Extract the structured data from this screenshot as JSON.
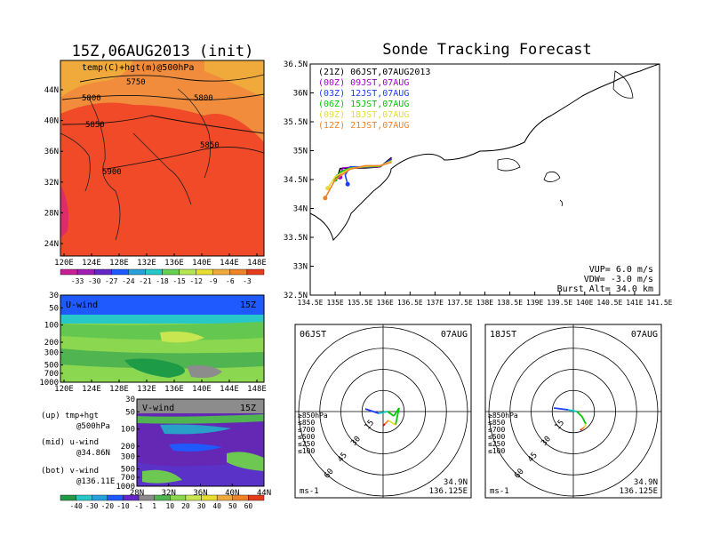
{
  "left": {
    "init_title": "15Z,06AUG2013 (init)",
    "map": {
      "label": "temp(C)+hgt(m)@500hPa",
      "lon_ticks": [
        "120E",
        "124E",
        "128E",
        "132E",
        "136E",
        "140E",
        "144E",
        "148E"
      ],
      "lat_ticks": [
        "44N",
        "40N",
        "36N",
        "32N",
        "28N",
        "24N"
      ],
      "contour_labels": [
        "5750",
        "5800",
        "5800",
        "5850",
        "5850",
        "5900"
      ]
    },
    "temp_colorbar": [
      "-33",
      "-30",
      "-27",
      "-24",
      "-21",
      "-18",
      "-15",
      "-12",
      "-9",
      "-6",
      "-3"
    ],
    "uwind": {
      "label": "U-wind",
      "time": "15Z",
      "p_ticks": [
        "30",
        "50",
        "100",
        "200",
        "300",
        "500",
        "700",
        "1000"
      ],
      "lon_ticks": [
        "120E",
        "124E",
        "128E",
        "132E",
        "136E",
        "140E",
        "144E",
        "148E"
      ]
    },
    "vwind": {
      "label": "V-wind",
      "time": "15Z",
      "p_ticks": [
        "30",
        "50",
        "100",
        "200",
        "300",
        "500",
        "700",
        "1000"
      ],
      "lat_ticks": [
        "28N",
        "32N",
        "36N",
        "40N",
        "44N"
      ]
    },
    "legend_text": {
      "up_1": "(up) tmp+hgt",
      "up_2": "@500hPa",
      "mid_1": "(mid) u-wind",
      "mid_2": "@34.86N",
      "bot_1": "(bot) v-wind",
      "bot_2": "@136.11E"
    },
    "wind_colorbar": [
      "-40",
      "-30",
      "-20",
      "-10",
      "-1",
      "1",
      "10",
      "20",
      "30",
      "40",
      "50",
      "60"
    ]
  },
  "right": {
    "title": "Sonde Tracking Forecast",
    "track_map": {
      "lon_ticks": [
        "134.5E",
        "135E",
        "135.5E",
        "136E",
        "136.5E",
        "137E",
        "137.5E",
        "138E",
        "138.5E",
        "139E",
        "139.5E",
        "140E",
        "140.5E",
        "141E",
        "141.5E"
      ],
      "lat_ticks": [
        "36.5N",
        "36N",
        "35.5N",
        "35N",
        "34.5N",
        "34N",
        "33.5N",
        "33N",
        "32.5N"
      ],
      "legend": [
        {
          "text": "(21Z) 06JST,07AUG2013",
          "color": "#000000"
        },
        {
          "text": "(00Z) 09JST,07AUG",
          "color": "#a000c8"
        },
        {
          "text": "(03Z) 12JST,07AUG",
          "color": "#1e3cff"
        },
        {
          "text": "(06Z) 15JST,07AUG",
          "color": "#00c800"
        },
        {
          "text": "(09Z) 18JST,07AUG",
          "color": "#e6dc32"
        },
        {
          "text": "(12Z) 21JST,07AUG",
          "color": "#f08228"
        }
      ],
      "params": [
        "VUP= 6.0 m/s",
        "VDW= -3.0 m/s",
        "Burst Alt= 34.0 km"
      ]
    },
    "polar_left": {
      "time": "06JST",
      "date": "07AUG",
      "ring_labels": [
        "15",
        "30",
        "45",
        "60"
      ],
      "levels": [
        {
          "text": "≥850hPa",
          "color": "#e00000"
        },
        {
          "text": "≤850",
          "color": "#f08228"
        },
        {
          "text": "≤700",
          "color": "#e6dc32"
        },
        {
          "text": "≤500",
          "color": "#00c800"
        },
        {
          "text": "≤250",
          "color": "#00c8c8"
        },
        {
          "text": "≤100",
          "color": "#1e3cff"
        }
      ],
      "unit": "ms-1",
      "lat": "34.9N",
      "lon": "136.125E"
    },
    "polar_right": {
      "time": "18JST",
      "date": "07AUG",
      "ring_labels": [
        "15",
        "30",
        "45",
        "60"
      ],
      "levels": [
        {
          "text": "≥850hPa",
          "color": "#e00000"
        },
        {
          "text": "≤850",
          "color": "#f08228"
        },
        {
          "text": "≤700",
          "color": "#e6dc32"
        },
        {
          "text": "≤500",
          "color": "#00c800"
        },
        {
          "text": "≤250",
          "color": "#00c8c8"
        },
        {
          "text": "≤100",
          "color": "#1e3cff"
        }
      ],
      "unit": "ms-1",
      "lat": "34.9N",
      "lon": "136.125E"
    }
  },
  "chart_data": [
    {
      "type": "heatmap",
      "title": "15Z,06AUG2013 (init)",
      "subtitle": "temp(C)+hgt(m)@500hPa",
      "xlim": [
        120,
        150
      ],
      "ylim": [
        22,
        47
      ],
      "colorbar": [
        -33,
        -30,
        -27,
        -24,
        -21,
        -18,
        -15,
        -12,
        -9,
        -6,
        -3
      ],
      "contours_m": [
        5750,
        5800,
        5850,
        5900
      ]
    },
    {
      "type": "heatmap",
      "title": "U-wind",
      "subtitle": "15Z",
      "y_pressure_hPa": [
        30,
        50,
        100,
        200,
        300,
        500,
        700,
        1000
      ],
      "xlim": [
        120,
        150
      ]
    },
    {
      "type": "heatmap",
      "title": "V-wind",
      "subtitle": "15Z",
      "y_pressure_hPa": [
        30,
        50,
        100,
        200,
        300,
        500,
        700,
        1000
      ],
      "xlim": [
        28,
        44
      ],
      "colorbar": [
        -40,
        -30,
        -20,
        -10,
        -1,
        1,
        10,
        20,
        30,
        40,
        50,
        60
      ]
    },
    {
      "type": "line",
      "title": "Sonde Tracking Forecast",
      "xlim": [
        134.5,
        141.5
      ],
      "ylim": [
        32.5,
        36.5
      ],
      "series": [
        {
          "name": "(21Z) 06JST,07AUG2013",
          "x": [
            136.13,
            135.9,
            135.6,
            135.3,
            135.1,
            135.05
          ],
          "y": [
            34.88,
            34.72,
            34.7,
            34.7,
            34.69,
            34.55
          ]
        },
        {
          "name": "(00Z) 09JST,07AUG",
          "x": [
            136.13,
            135.9,
            135.6,
            135.3,
            135.15,
            135.1
          ],
          "y": [
            34.86,
            34.72,
            34.71,
            34.71,
            34.7,
            34.54
          ]
        },
        {
          "name": "(03Z) 12JST,07AUG",
          "x": [
            136.13,
            135.9,
            135.6,
            135.3,
            135.2,
            135.25
          ],
          "y": [
            34.85,
            34.73,
            34.72,
            34.72,
            34.58,
            34.42
          ]
        },
        {
          "name": "(06Z) 15JST,07AUG",
          "x": [
            136.13,
            135.9,
            135.6,
            135.3,
            135.1,
            135.0
          ],
          "y": [
            34.83,
            34.73,
            34.72,
            34.7,
            34.63,
            34.5
          ]
        },
        {
          "name": "(09Z) 18JST,07AUG",
          "x": [
            136.13,
            135.9,
            135.6,
            135.3,
            135.0,
            134.85
          ],
          "y": [
            34.82,
            34.74,
            34.73,
            34.69,
            34.55,
            34.35
          ]
        },
        {
          "name": "(12Z) 21JST,07AUG",
          "x": [
            136.13,
            135.9,
            135.6,
            135.3,
            135.0,
            134.8
          ],
          "y": [
            34.8,
            34.74,
            34.74,
            34.68,
            34.5,
            34.18
          ]
        }
      ],
      "params": {
        "VUP_m_s": 6.0,
        "VDW_m_s": -3.0,
        "burst_alt_km": 34.0
      }
    },
    {
      "type": "line",
      "title": "06JST 07AUG",
      "rings": [
        15,
        30,
        45,
        60
      ],
      "unit": "ms-1",
      "location": [
        "34.9N",
        "136.125E"
      ]
    },
    {
      "type": "line",
      "title": "18JST 07AUG",
      "rings": [
        15,
        30,
        45,
        60
      ],
      "unit": "ms-1",
      "location": [
        "34.9N",
        "136.125E"
      ]
    }
  ]
}
